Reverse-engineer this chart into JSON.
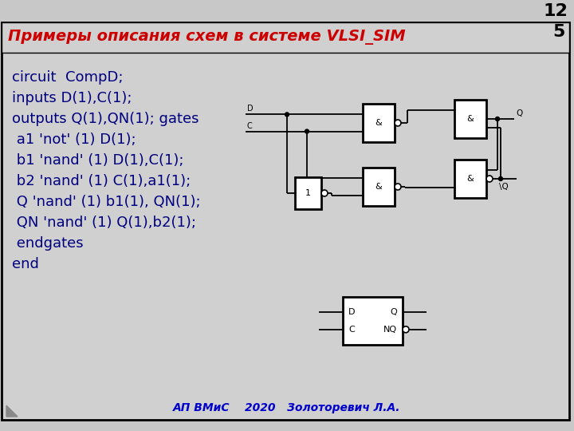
{
  "bg_color": "#c8c8c8",
  "slide_bg": "#d0d0d0",
  "title": "Примеры описания схем в системе VLSI_SIM",
  "title_color": "#cc0000",
  "title_fontsize": 14,
  "footer": "АП ВМиС    2020   Золоторевич Л.А.",
  "footer_color": "#0000cc",
  "code_lines": [
    "circuit  CompD;",
    "inputs D(1),C(1);",
    "outputs Q(1),QN(1); gates",
    " a1 'not' (1) D(1);",
    " b1 'nand' (1) D(1),C(1);",
    " b2 'nand' (1) C(1),a1(1);",
    " Q 'nand' (1) b1(1), QN(1);",
    " QN 'nand' (1) Q(1),b2(1);",
    " endgates",
    "end"
  ],
  "code_color": "#000080",
  "code_fontsize": 13
}
